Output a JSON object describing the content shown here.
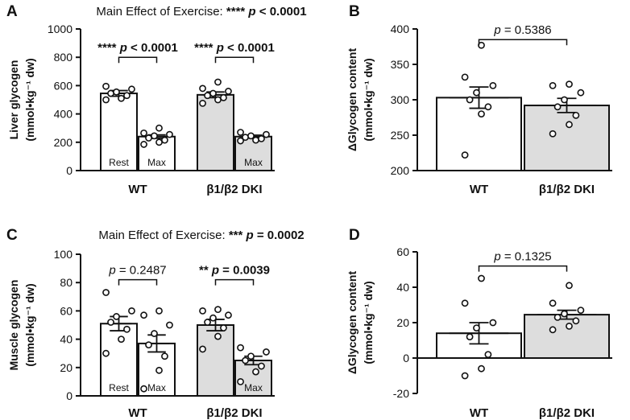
{
  "chart_data": [
    {
      "id": "A",
      "type": "bar",
      "panel_label": "A",
      "title_prefix": "Main Effect of Exercise: ",
      "title_stars": "****",
      "title_p": "p < 0.0001",
      "ylabel_line1": "Liver glycogen",
      "ylabel_line2": "(mmol•kg⁻¹ dw)",
      "ylim": [
        0,
        1000
      ],
      "yticks": [
        0,
        200,
        400,
        600,
        800,
        1000
      ],
      "groups": [
        "WT",
        "β1/β2 DKI"
      ],
      "bars": [
        {
          "group": 0,
          "label": "Rest",
          "fill": "#ffffff",
          "mean": 545,
          "sem": 20,
          "points": [
            500,
            510,
            530,
            545,
            555,
            575,
            595
          ]
        },
        {
          "group": 0,
          "label": "Max",
          "fill": "#ffffff",
          "mean": 240,
          "sem": 12,
          "points": [
            185,
            200,
            215,
            230,
            245,
            255,
            265,
            300
          ]
        },
        {
          "group": 1,
          "label": "",
          "fill": "#dddddd",
          "mean": 535,
          "sem": 20,
          "points": [
            475,
            500,
            515,
            530,
            545,
            560,
            580,
            625
          ]
        },
        {
          "group": 1,
          "label": "Max",
          "fill": "#dddddd",
          "mean": 240,
          "sem": 10,
          "points": [
            210,
            215,
            225,
            235,
            245,
            255,
            270
          ]
        }
      ],
      "comparisons": [
        {
          "group": 0,
          "stars": "****",
          "p": "p < 0.0001",
          "bold": true,
          "y": 800
        },
        {
          "group": 1,
          "stars": "****",
          "p": "p < 0.0001",
          "bold": true,
          "y": 800
        }
      ]
    },
    {
      "id": "B",
      "type": "bar",
      "panel_label": "B",
      "ylabel_line1": "ΔGlycogen content",
      "ylabel_line2": "(mmol•kg⁻¹ dw)",
      "ylim": [
        200,
        400
      ],
      "yticks": [
        200,
        250,
        300,
        350,
        400
      ],
      "categories": [
        "WT",
        "β1/β2 DKI"
      ],
      "bars": [
        {
          "label": "WT",
          "fill": "#ffffff",
          "mean": 303,
          "sem": 15,
          "points": [
            222,
            280,
            290,
            300,
            310,
            320,
            332,
            377
          ]
        },
        {
          "label": "β1/β2 DKI",
          "fill": "#dddddd",
          "mean": 292,
          "sem": 10,
          "points": [
            252,
            265,
            278,
            290,
            300,
            310,
            320,
            322
          ]
        }
      ],
      "comparison": {
        "p": "p = 0.5386",
        "y": 385
      }
    },
    {
      "id": "C",
      "type": "bar",
      "panel_label": "C",
      "title_prefix": "Main Effect of Exercise: ",
      "title_stars": "***",
      "title_p": "p = 0.0002",
      "ylabel_line1": "Muscle glycogen",
      "ylabel_line2": "(mmol•kg⁻¹ dw)",
      "ylim": [
        0,
        100
      ],
      "yticks": [
        0,
        20,
        40,
        60,
        80,
        100
      ],
      "groups": [
        "WT",
        "β1/β2 DKI"
      ],
      "bars": [
        {
          "group": 0,
          "label": "Rest",
          "fill": "#ffffff",
          "mean": 51,
          "sem": 5,
          "points": [
            30,
            40,
            47,
            52,
            56,
            60,
            73
          ]
        },
        {
          "group": 0,
          "label": "Max",
          "fill": "#ffffff",
          "mean": 37,
          "sem": 6,
          "points": [
            5,
            18,
            28,
            36,
            44,
            50,
            57,
            60
          ]
        },
        {
          "group": 1,
          "label": "",
          "fill": "#dddddd",
          "mean": 50,
          "sem": 4,
          "points": [
            33,
            42,
            48,
            52,
            55,
            57,
            60,
            61
          ]
        },
        {
          "group": 1,
          "label": "Max",
          "fill": "#dddddd",
          "mean": 25,
          "sem": 3,
          "points": [
            10,
            17,
            21,
            25,
            28,
            31,
            34
          ]
        }
      ],
      "comparisons": [
        {
          "group": 0,
          "stars": "",
          "p": "p = 0.2487",
          "bold": false,
          "y": 82
        },
        {
          "group": 1,
          "stars": "**",
          "p": "p = 0.0039",
          "bold": true,
          "y": 82
        }
      ]
    },
    {
      "id": "D",
      "type": "bar",
      "panel_label": "D",
      "ylabel_line1": "ΔGlycogen content",
      "ylabel_line2": "(mmol•kg⁻¹ dw)",
      "ylim": [
        -20,
        60
      ],
      "yticks": [
        -20,
        0,
        20,
        40,
        60
      ],
      "categories": [
        "WT",
        "β1/β2 DKI"
      ],
      "bars": [
        {
          "label": "WT",
          "fill": "#ffffff",
          "mean": 14,
          "sem": 6,
          "points": [
            -10,
            -6,
            2,
            12,
            17,
            20,
            31,
            45
          ]
        },
        {
          "label": "β1/β2 DKI",
          "fill": "#dddddd",
          "mean": 24.5,
          "sem": 2.5,
          "points": [
            16,
            18,
            21,
            23,
            25,
            27,
            31,
            41
          ]
        }
      ],
      "comparison": {
        "p": "p = 0.1325",
        "y": 52
      }
    }
  ]
}
